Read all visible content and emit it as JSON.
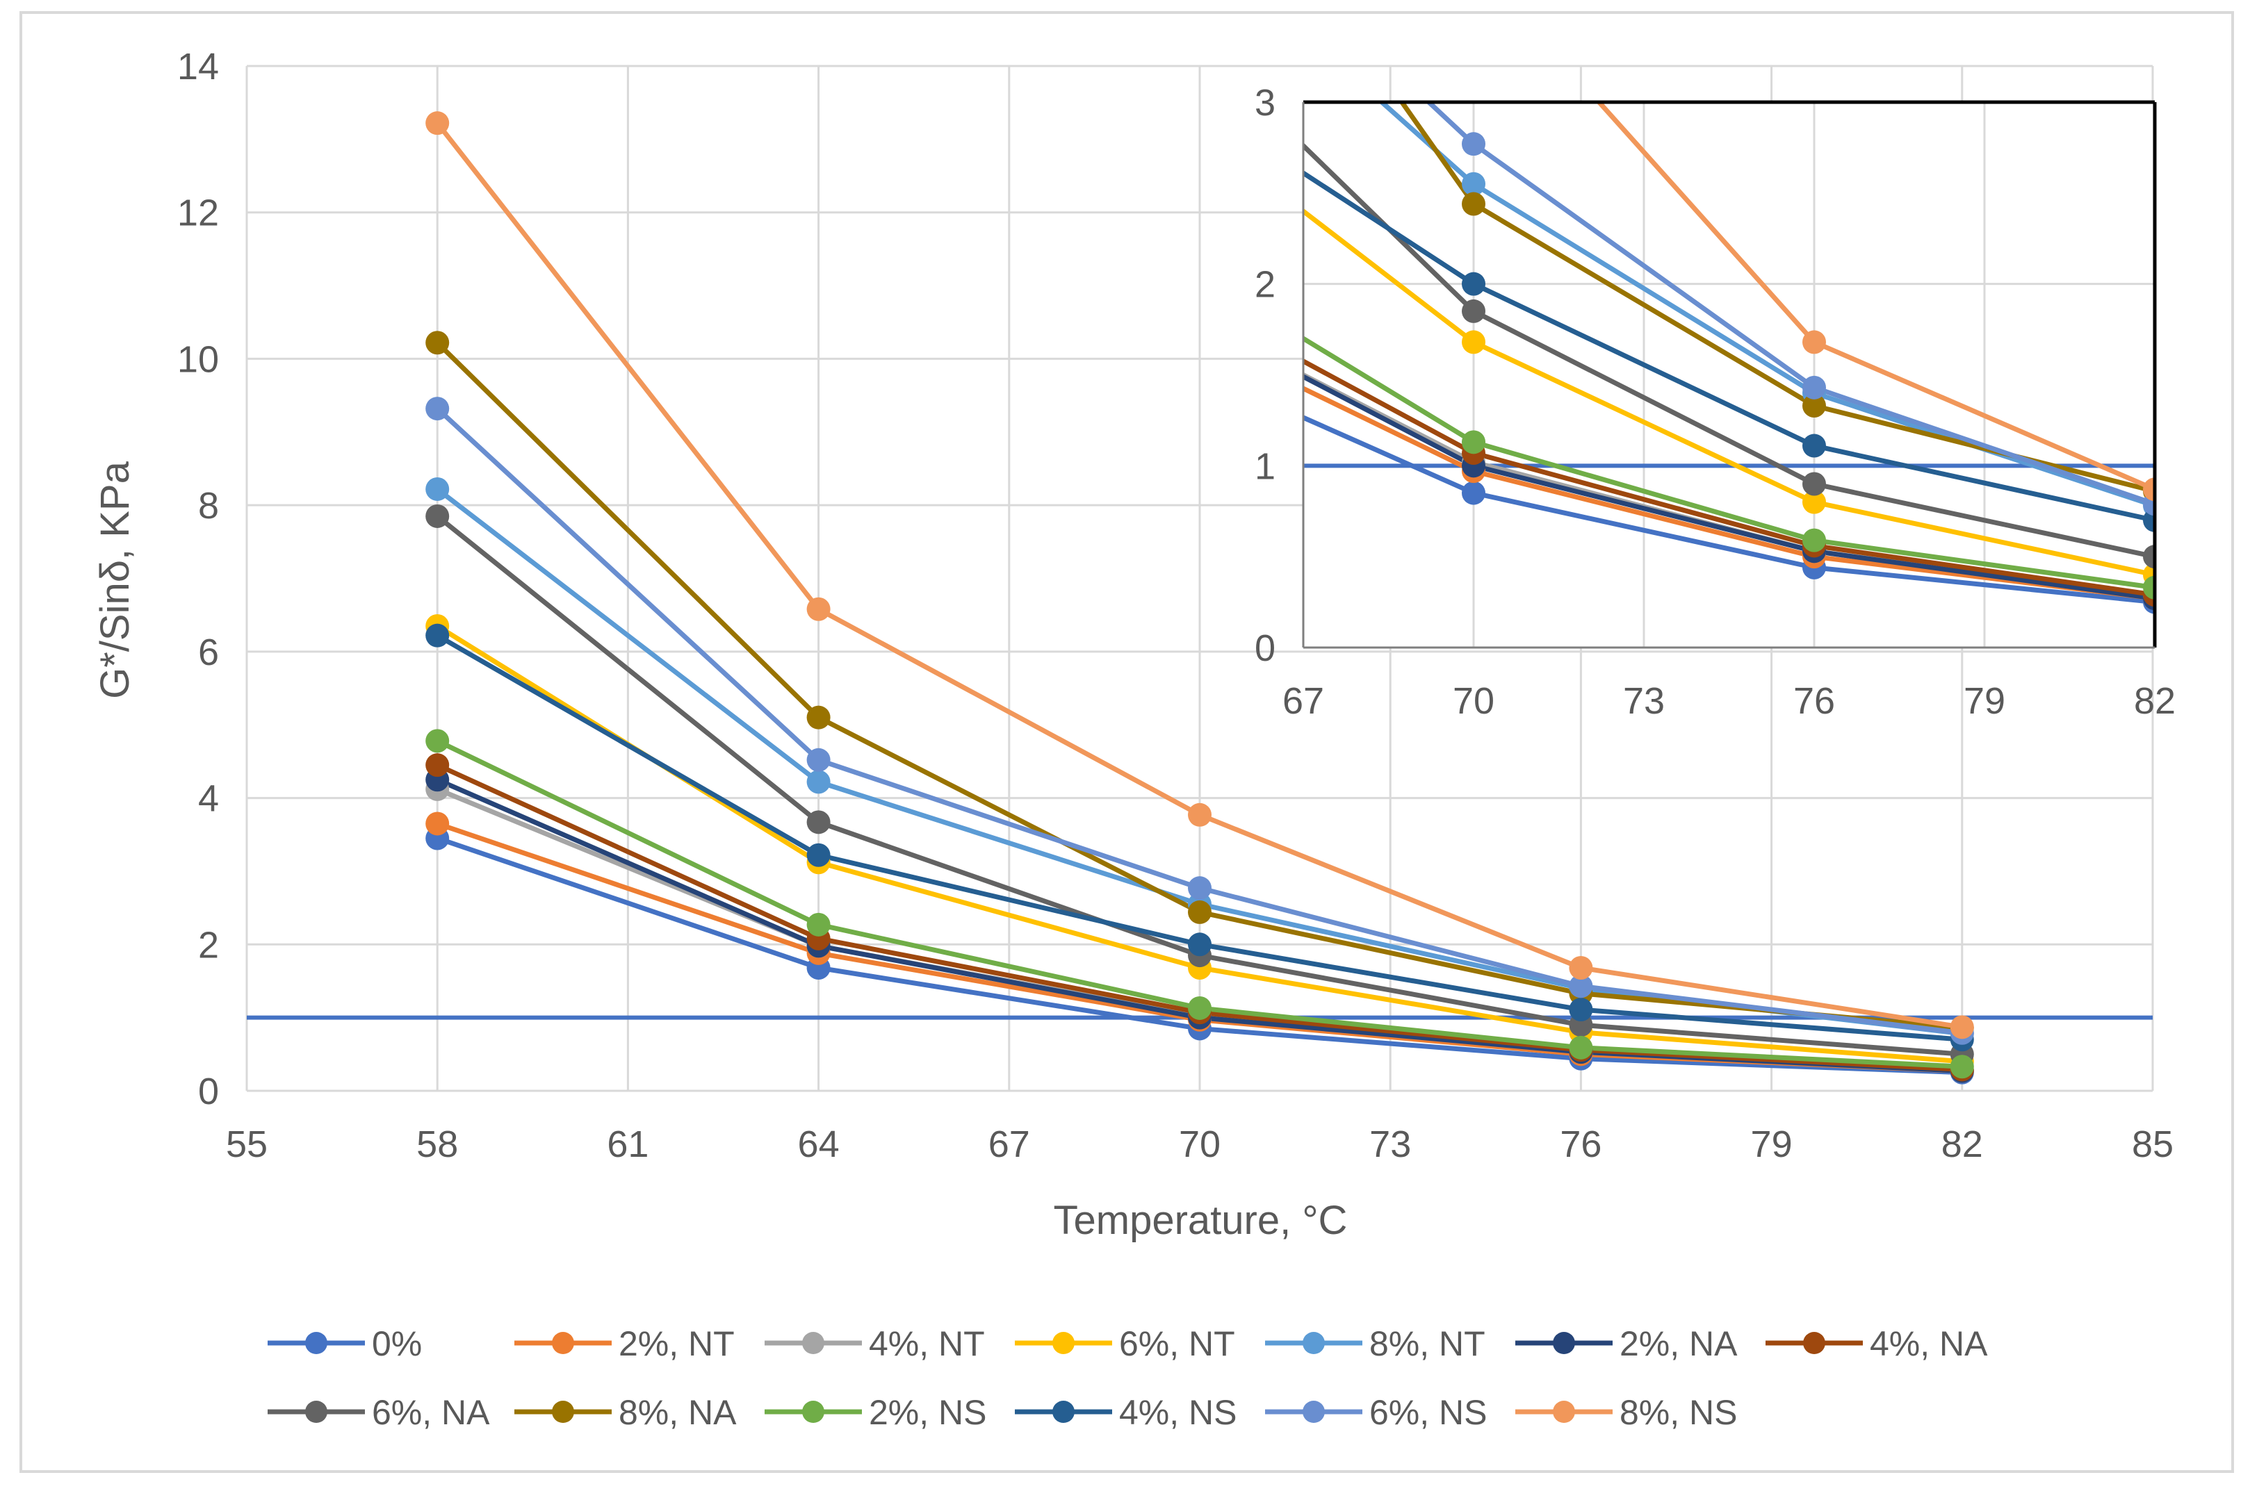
{
  "chart_data": [
    {
      "type": "line",
      "name": "main",
      "title": "",
      "xlabel": "Temperature, °C",
      "ylabel": "G*/Sinδ, KPa",
      "xlim": [
        55,
        85
      ],
      "ylim": [
        0,
        14
      ],
      "xticks": [
        "55",
        "58",
        "61",
        "64",
        "67",
        "70",
        "73",
        "76",
        "79",
        "82",
        "85"
      ],
      "yticks": [
        "0",
        "2",
        "4",
        "6",
        "8",
        "10",
        "12",
        "14"
      ],
      "x": [
        58,
        64,
        70,
        76,
        82
      ],
      "threshold": 1,
      "grid": true,
      "legend_position": "bottom",
      "series": [
        {
          "name": "0%",
          "color": "#4472C4",
          "values": [
            3.45,
            1.68,
            0.85,
            0.44,
            0.25
          ]
        },
        {
          "name": "2%, NT",
          "color": "#ED7D31",
          "values": [
            3.65,
            1.88,
            0.97,
            0.5,
            0.27
          ]
        },
        {
          "name": "4%, NT",
          "color": "#A5A5A5",
          "values": [
            4.12,
            1.98,
            1.02,
            0.53,
            0.28
          ]
        },
        {
          "name": "6%, NT",
          "color": "#FFC000",
          "values": [
            6.35,
            3.12,
            1.68,
            0.8,
            0.4
          ]
        },
        {
          "name": "8%, NT",
          "color": "#5B9BD5",
          "values": [
            8.22,
            4.22,
            2.55,
            1.4,
            0.78
          ]
        },
        {
          "name": "2%, NA",
          "color": "#264478",
          "values": [
            4.25,
            1.98,
            1.0,
            0.53,
            0.27
          ]
        },
        {
          "name": "4%, NA",
          "color": "#9E480E",
          "values": [
            4.45,
            2.08,
            1.07,
            0.56,
            0.29
          ]
        },
        {
          "name": "6%, NA",
          "color": "#636363",
          "values": [
            7.85,
            3.67,
            1.85,
            0.9,
            0.5
          ]
        },
        {
          "name": "8%, NA",
          "color": "#997300",
          "values": [
            10.22,
            5.1,
            2.44,
            1.33,
            0.86
          ]
        },
        {
          "name": "2%, NS",
          "color": "#70AD47",
          "values": [
            4.78,
            2.27,
            1.13,
            0.59,
            0.33
          ]
        },
        {
          "name": "4%, NS",
          "color": "#255E91",
          "values": [
            6.22,
            3.22,
            2.0,
            1.11,
            0.7
          ]
        },
        {
          "name": "6%, NS",
          "color": "#698ED0",
          "values": [
            9.32,
            4.52,
            2.77,
            1.43,
            0.79
          ]
        },
        {
          "name": "8%, NS",
          "color": "#F1975A",
          "values": [
            13.22,
            6.58,
            3.77,
            1.68,
            0.87
          ]
        }
      ]
    },
    {
      "type": "line",
      "name": "inset",
      "title": "",
      "xlim": [
        67,
        82
      ],
      "ylim": [
        0,
        3
      ],
      "xticks": [
        "67",
        "70",
        "73",
        "76",
        "79",
        "82"
      ],
      "yticks": [
        "0",
        "1",
        "2",
        "3"
      ],
      "threshold": 1,
      "note": "Zoomed view of the same 13 series over 67–82 °C"
    }
  ]
}
